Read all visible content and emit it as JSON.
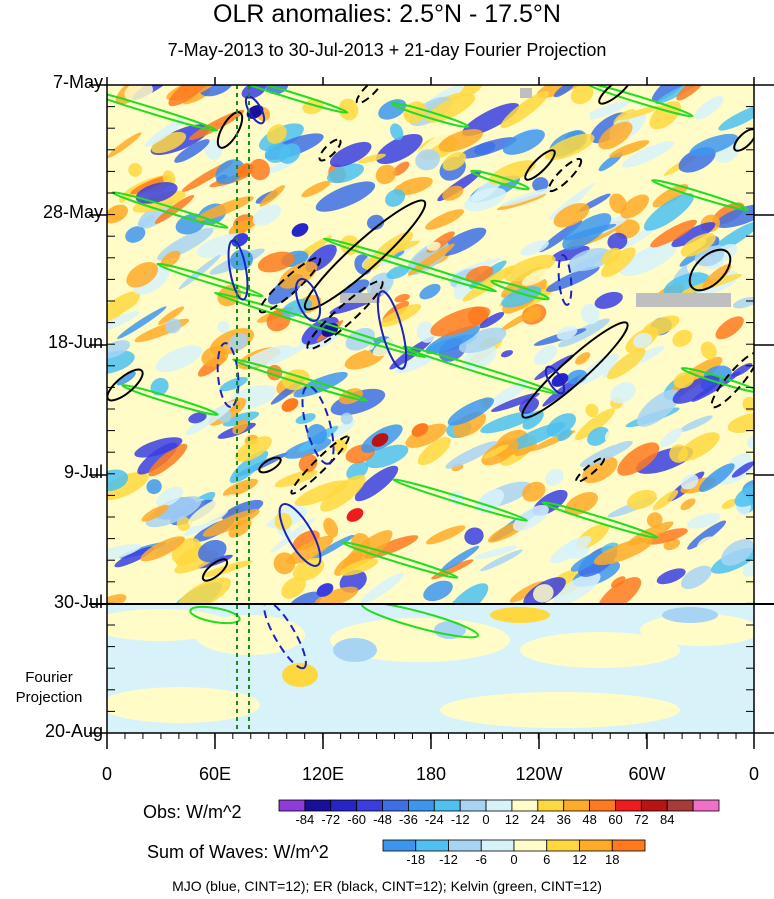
{
  "title": "OLR anomalies: 2.5°N - 17.5°N",
  "subtitle": "7-May-2013 to 30-Jul-2013 + 21-day Fourier Projection",
  "chart_data": {
    "type": "heatmap",
    "title": "OLR anomalies: 2.5°N - 17.5°N",
    "subtitle": "7-May-2013 to 30-Jul-2013 + 21-day Fourier Projection",
    "x_ticks": [
      "0",
      "60E",
      "120E",
      "180",
      "120W",
      "60W",
      "0"
    ],
    "y_ticks": [
      "7-May",
      "28-May",
      "18-Jun",
      "9-Jul",
      "30-Jul",
      "20-Aug"
    ],
    "projection_label": "Fourier Projection",
    "obs_colorbar": {
      "title": "Obs: W/m^2",
      "levels": [
        -84,
        -72,
        -60,
        -48,
        -36,
        -24,
        -12,
        0,
        12,
        24,
        36,
        48,
        60,
        72,
        84
      ],
      "colors": [
        "#8e3bd9",
        "#1a0e9c",
        "#2626c8",
        "#3a3ee0",
        "#3d6fe6",
        "#3d96ee",
        "#4ec1f0",
        "#a8d4f4",
        "#d8f2fa",
        "#fffcc8",
        "#ffd840",
        "#ffaa28",
        "#ff7a1e",
        "#ee1c1c",
        "#b81414",
        "#a83a3a",
        "#f070c8"
      ]
    },
    "waves_colorbar": {
      "title": "Sum of Waves: W/m^2",
      "levels": [
        -18,
        -12,
        -6,
        0,
        6,
        12,
        18
      ],
      "colors": [
        "#3d96ee",
        "#4ec1f0",
        "#a8d4f4",
        "#d8f2fa",
        "#fffcc8",
        "#ffd840",
        "#ffaa28",
        "#ff7a1e"
      ]
    },
    "contours": [
      {
        "name": "MJO",
        "color": "#1a22c0"
      },
      {
        "name": "ER",
        "color": "#000000"
      },
      {
        "name": "Kelvin",
        "color": "#22dd22"
      }
    ]
  },
  "footer": "MJO (blue, CINT=12); ER (black, CINT=12); Kelvin (green, CINT=12)"
}
